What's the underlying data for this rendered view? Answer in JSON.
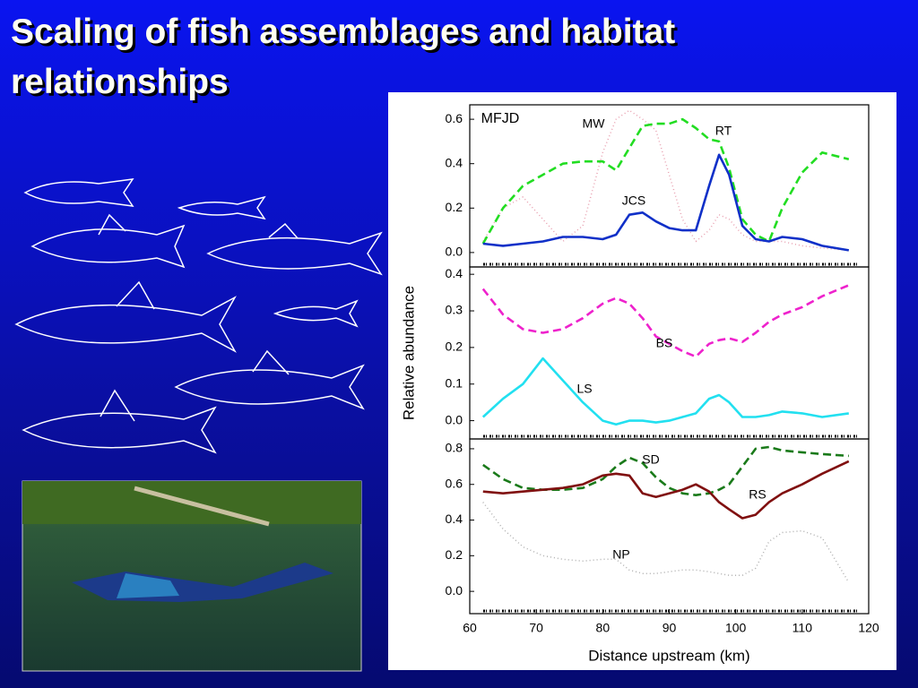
{
  "slide_title": "Scaling of fish assemblages and habitat relationships",
  "chart_data": [
    {
      "type": "line",
      "annotation": "MFJD",
      "x": [
        62,
        65,
        68,
        71,
        74,
        77,
        80,
        82,
        84,
        86,
        88,
        90,
        92,
        94,
        96,
        97.5,
        99,
        101,
        103,
        105,
        107,
        110,
        113,
        117
      ],
      "xlim": [
        60,
        120
      ],
      "ylim": [
        -0.065,
        0.665
      ],
      "yticks": [
        {
          "value": 0,
          "label": "0.0"
        },
        0.2,
        0.4,
        0.6
      ],
      "series": [
        {
          "name": "MW",
          "color": "#e8a0b0",
          "linestyle": "dotted",
          "values": [
            0.05,
            0.2,
            0.25,
            0.15,
            0.05,
            0.12,
            0.45,
            0.6,
            0.64,
            0.6,
            0.55,
            0.35,
            0.15,
            0.05,
            0.1,
            0.17,
            0.15,
            0.08,
            0.05,
            0.05,
            0.05,
            0.03,
            0.02,
            0.01
          ]
        },
        {
          "name": "RT",
          "color": "#22dd22",
          "linestyle": "dashed",
          "values": [
            0.04,
            0.2,
            0.3,
            0.35,
            0.4,
            0.41,
            0.41,
            0.37,
            0.47,
            0.57,
            0.58,
            0.58,
            0.6,
            0.56,
            0.51,
            0.5,
            0.38,
            0.15,
            0.08,
            0.05,
            0.2,
            0.36,
            0.45,
            0.42
          ]
        },
        {
          "name": "JCS",
          "color": "#1030c8",
          "linestyle": "solid",
          "values": [
            0.04,
            0.03,
            0.04,
            0.05,
            0.07,
            0.07,
            0.06,
            0.08,
            0.17,
            0.18,
            0.14,
            0.11,
            0.1,
            0.1,
            0.3,
            0.44,
            0.35,
            0.12,
            0.06,
            0.05,
            0.07,
            0.06,
            0.03,
            0.01
          ]
        }
      ]
    },
    {
      "type": "line",
      "ylabel": "Relative abundance",
      "x": [
        62,
        65,
        68,
        71,
        74,
        77,
        80,
        82,
        84,
        86,
        88,
        90,
        92,
        94,
        96,
        97.5,
        99,
        101,
        103,
        105,
        107,
        110,
        113,
        117
      ],
      "xlim": [
        60,
        120
      ],
      "ylim": [
        -0.05,
        0.42
      ],
      "yticks": [
        {
          "value": 0,
          "label": "0.0"
        },
        0.1,
        0.2,
        0.3,
        0.4
      ],
      "series": [
        {
          "name": "BS",
          "color": "#ee22cc",
          "linestyle": "dashed",
          "values": [
            0.36,
            0.29,
            0.25,
            0.24,
            0.25,
            0.28,
            0.32,
            0.335,
            0.32,
            0.28,
            0.23,
            0.21,
            0.19,
            0.175,
            0.21,
            0.22,
            0.225,
            0.215,
            0.24,
            0.27,
            0.29,
            0.31,
            0.34,
            0.37
          ]
        },
        {
          "name": "LS",
          "color": "#22e0f0",
          "linestyle": "solid",
          "values": [
            0.01,
            0.06,
            0.1,
            0.17,
            0.11,
            0.05,
            0,
            -0.01,
            0,
            0,
            -0.005,
            0,
            0.01,
            0.02,
            0.06,
            0.07,
            0.05,
            0.01,
            0.01,
            0.015,
            0.025,
            0.02,
            0.01,
            0.02
          ]
        }
      ]
    },
    {
      "type": "line",
      "xlabel": "Distance upstream (km)",
      "x": [
        62,
        65,
        68,
        71,
        74,
        77,
        80,
        82,
        84,
        86,
        88,
        90,
        92,
        94,
        96,
        97.5,
        99,
        101,
        103,
        105,
        107,
        110,
        113,
        117
      ],
      "xlim": [
        60,
        120
      ],
      "xticks": [
        60,
        70,
        80,
        90,
        100,
        110,
        120
      ],
      "ylim": [
        -0.125,
        0.855
      ],
      "yticks": [
        {
          "value": 0,
          "label": "0.0"
        },
        0.2,
        0.4,
        0.6,
        0.8
      ],
      "series": [
        {
          "name": "SD",
          "color": "#1a7a1a",
          "linestyle": "dashed",
          "values": [
            0.71,
            0.63,
            0.58,
            0.57,
            0.57,
            0.58,
            0.63,
            0.7,
            0.75,
            0.72,
            0.64,
            0.58,
            0.55,
            0.54,
            0.55,
            0.57,
            0.6,
            0.7,
            0.8,
            0.81,
            0.79,
            0.78,
            0.77,
            0.76
          ]
        },
        {
          "name": "RS",
          "color": "#801010",
          "linestyle": "solid",
          "values": [
            0.56,
            0.55,
            0.56,
            0.57,
            0.58,
            0.6,
            0.65,
            0.66,
            0.65,
            0.55,
            0.53,
            0.55,
            0.57,
            0.6,
            0.56,
            0.5,
            0.46,
            0.41,
            0.43,
            0.5,
            0.55,
            0.6,
            0.66,
            0.73
          ]
        },
        {
          "name": "NP",
          "color": "#b0b0b0",
          "linestyle": "dotted",
          "values": [
            0.5,
            0.35,
            0.25,
            0.2,
            0.18,
            0.17,
            0.18,
            0.18,
            0.12,
            0.1,
            0.1,
            0.11,
            0.12,
            0.12,
            0.11,
            0.1,
            0.09,
            0.09,
            0.13,
            0.28,
            0.33,
            0.34,
            0.3,
            0.05
          ]
        }
      ]
    }
  ]
}
